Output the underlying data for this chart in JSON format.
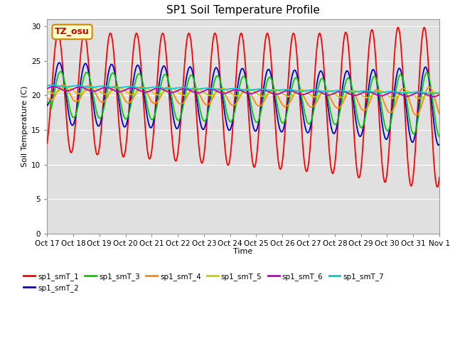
{
  "title": "SP1 Soil Temperature Profile",
  "xlabel": "Time",
  "ylabel": "Soil Temperature (C)",
  "ylim": [
    0,
    31
  ],
  "yticks": [
    0,
    5,
    10,
    15,
    20,
    25,
    30
  ],
  "annotation": "TZ_osu",
  "series_names": [
    "sp1_smT_1",
    "sp1_smT_2",
    "sp1_smT_3",
    "sp1_smT_4",
    "sp1_smT_5",
    "sp1_smT_6",
    "sp1_smT_7"
  ],
  "series_colors": [
    "#ff0000",
    "#0000cc",
    "#00cc00",
    "#ff8800",
    "#cccc00",
    "#bb00bb",
    "#00cccc"
  ],
  "xtick_labels": [
    "Oct 17",
    "Oct 18",
    "Oct 19",
    "Oct 20",
    "Oct 21",
    "Oct 22",
    "Oct 23",
    "Oct 24",
    "Oct 25",
    "Oct 26",
    "Oct 27",
    "Oct 28",
    "Oct 29",
    "Oct 30",
    "Oct 31",
    "Nov 1"
  ],
  "background_color": "#e8e8e8",
  "plot_background": "#e0e0e0",
  "line_width": 1.3,
  "n_days": 15,
  "n_points": 3000
}
